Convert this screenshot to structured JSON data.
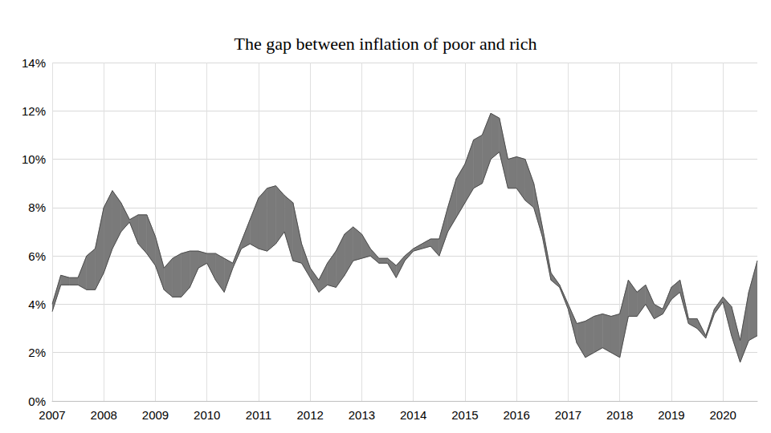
{
  "chart_data": {
    "type": "band",
    "title": "The gap between inflation of poor and rich",
    "color": "#7a7a7a",
    "grid": true,
    "categories": [
      "2007",
      null,
      null,
      null,
      null,
      null,
      "2008",
      null,
      null,
      null,
      null,
      null,
      "2009",
      null,
      null,
      null,
      null,
      null,
      "2010",
      null,
      null,
      null,
      null,
      null,
      "2011",
      null,
      null,
      null,
      null,
      null,
      "2012",
      null,
      null,
      null,
      null,
      null,
      "2013",
      null,
      null,
      null,
      null,
      null,
      "2014",
      null,
      null,
      null,
      null,
      null,
      "2015",
      null,
      null,
      null,
      null,
      null,
      "2016",
      null,
      null,
      null,
      null,
      null,
      "2017",
      null,
      null,
      null,
      null,
      null,
      "2018",
      null,
      null,
      null,
      null,
      null,
      "2019",
      null,
      null,
      null,
      null,
      null,
      "2020",
      null,
      null,
      null,
      null
    ],
    "series": [
      {
        "values": [
          4.0,
          5.2,
          5.1,
          5.1,
          6.0,
          6.3,
          8.0,
          8.7,
          8.2,
          7.5,
          7.7,
          7.7,
          6.8,
          5.5,
          5.9,
          6.1,
          6.2,
          6.2,
          6.1,
          6.1,
          5.9,
          5.7,
          6.6,
          7.5,
          8.4,
          8.8,
          8.9,
          8.5,
          8.2,
          6.5,
          5.5,
          5.0,
          5.7,
          6.2,
          6.9,
          7.2,
          6.9,
          6.3,
          5.9,
          5.9,
          5.6,
          6.0,
          6.3,
          6.5,
          6.7,
          6.7,
          8.0,
          9.2,
          9.8,
          10.8,
          11.0,
          11.9,
          11.7,
          10.0,
          10.1,
          10.0,
          9.0,
          7.2,
          5.3,
          4.8,
          4.0,
          3.2,
          3.3,
          3.5,
          3.6,
          3.5,
          3.6,
          5.0,
          4.5,
          4.8,
          4.0,
          3.8,
          4.7,
          5.0,
          3.4,
          3.4,
          2.7,
          3.8,
          4.3,
          3.9,
          2.5,
          4.5,
          5.8
        ]
      },
      {
        "values": [
          3.7,
          4.8,
          4.8,
          4.8,
          4.6,
          4.6,
          5.3,
          6.3,
          7.0,
          7.4,
          6.5,
          6.1,
          5.6,
          4.6,
          4.3,
          4.3,
          4.7,
          5.5,
          5.7,
          5.0,
          4.5,
          5.5,
          6.3,
          6.5,
          6.3,
          6.2,
          6.5,
          7.0,
          5.8,
          5.7,
          5.1,
          4.5,
          4.8,
          4.7,
          5.2,
          5.8,
          5.9,
          6.0,
          5.7,
          5.7,
          5.1,
          5.8,
          6.2,
          6.3,
          6.4,
          6.0,
          7.0,
          7.6,
          8.2,
          8.8,
          9.0,
          10.0,
          10.3,
          8.8,
          8.8,
          8.3,
          8.0,
          6.8,
          5.0,
          4.7,
          3.8,
          2.4,
          1.8,
          2.0,
          2.2,
          2.0,
          1.8,
          3.5,
          3.5,
          4.0,
          3.4,
          3.6,
          4.2,
          4.5,
          3.2,
          3.0,
          2.6,
          3.6,
          4.1,
          2.7,
          1.6,
          2.5,
          2.7
        ]
      }
    ],
    "ylim": [
      0,
      14
    ],
    "yticks": [
      {
        "value": 0,
        "label": "0%"
      },
      {
        "value": 2,
        "label": "2%"
      },
      {
        "value": 4,
        "label": "4%"
      },
      {
        "value": 6,
        "label": "6%"
      },
      {
        "value": 8,
        "label": "8%"
      },
      {
        "value": 10,
        "label": "10%"
      },
      {
        "value": 12,
        "label": "12%"
      },
      {
        "value": 14,
        "label": "14%"
      }
    ]
  }
}
